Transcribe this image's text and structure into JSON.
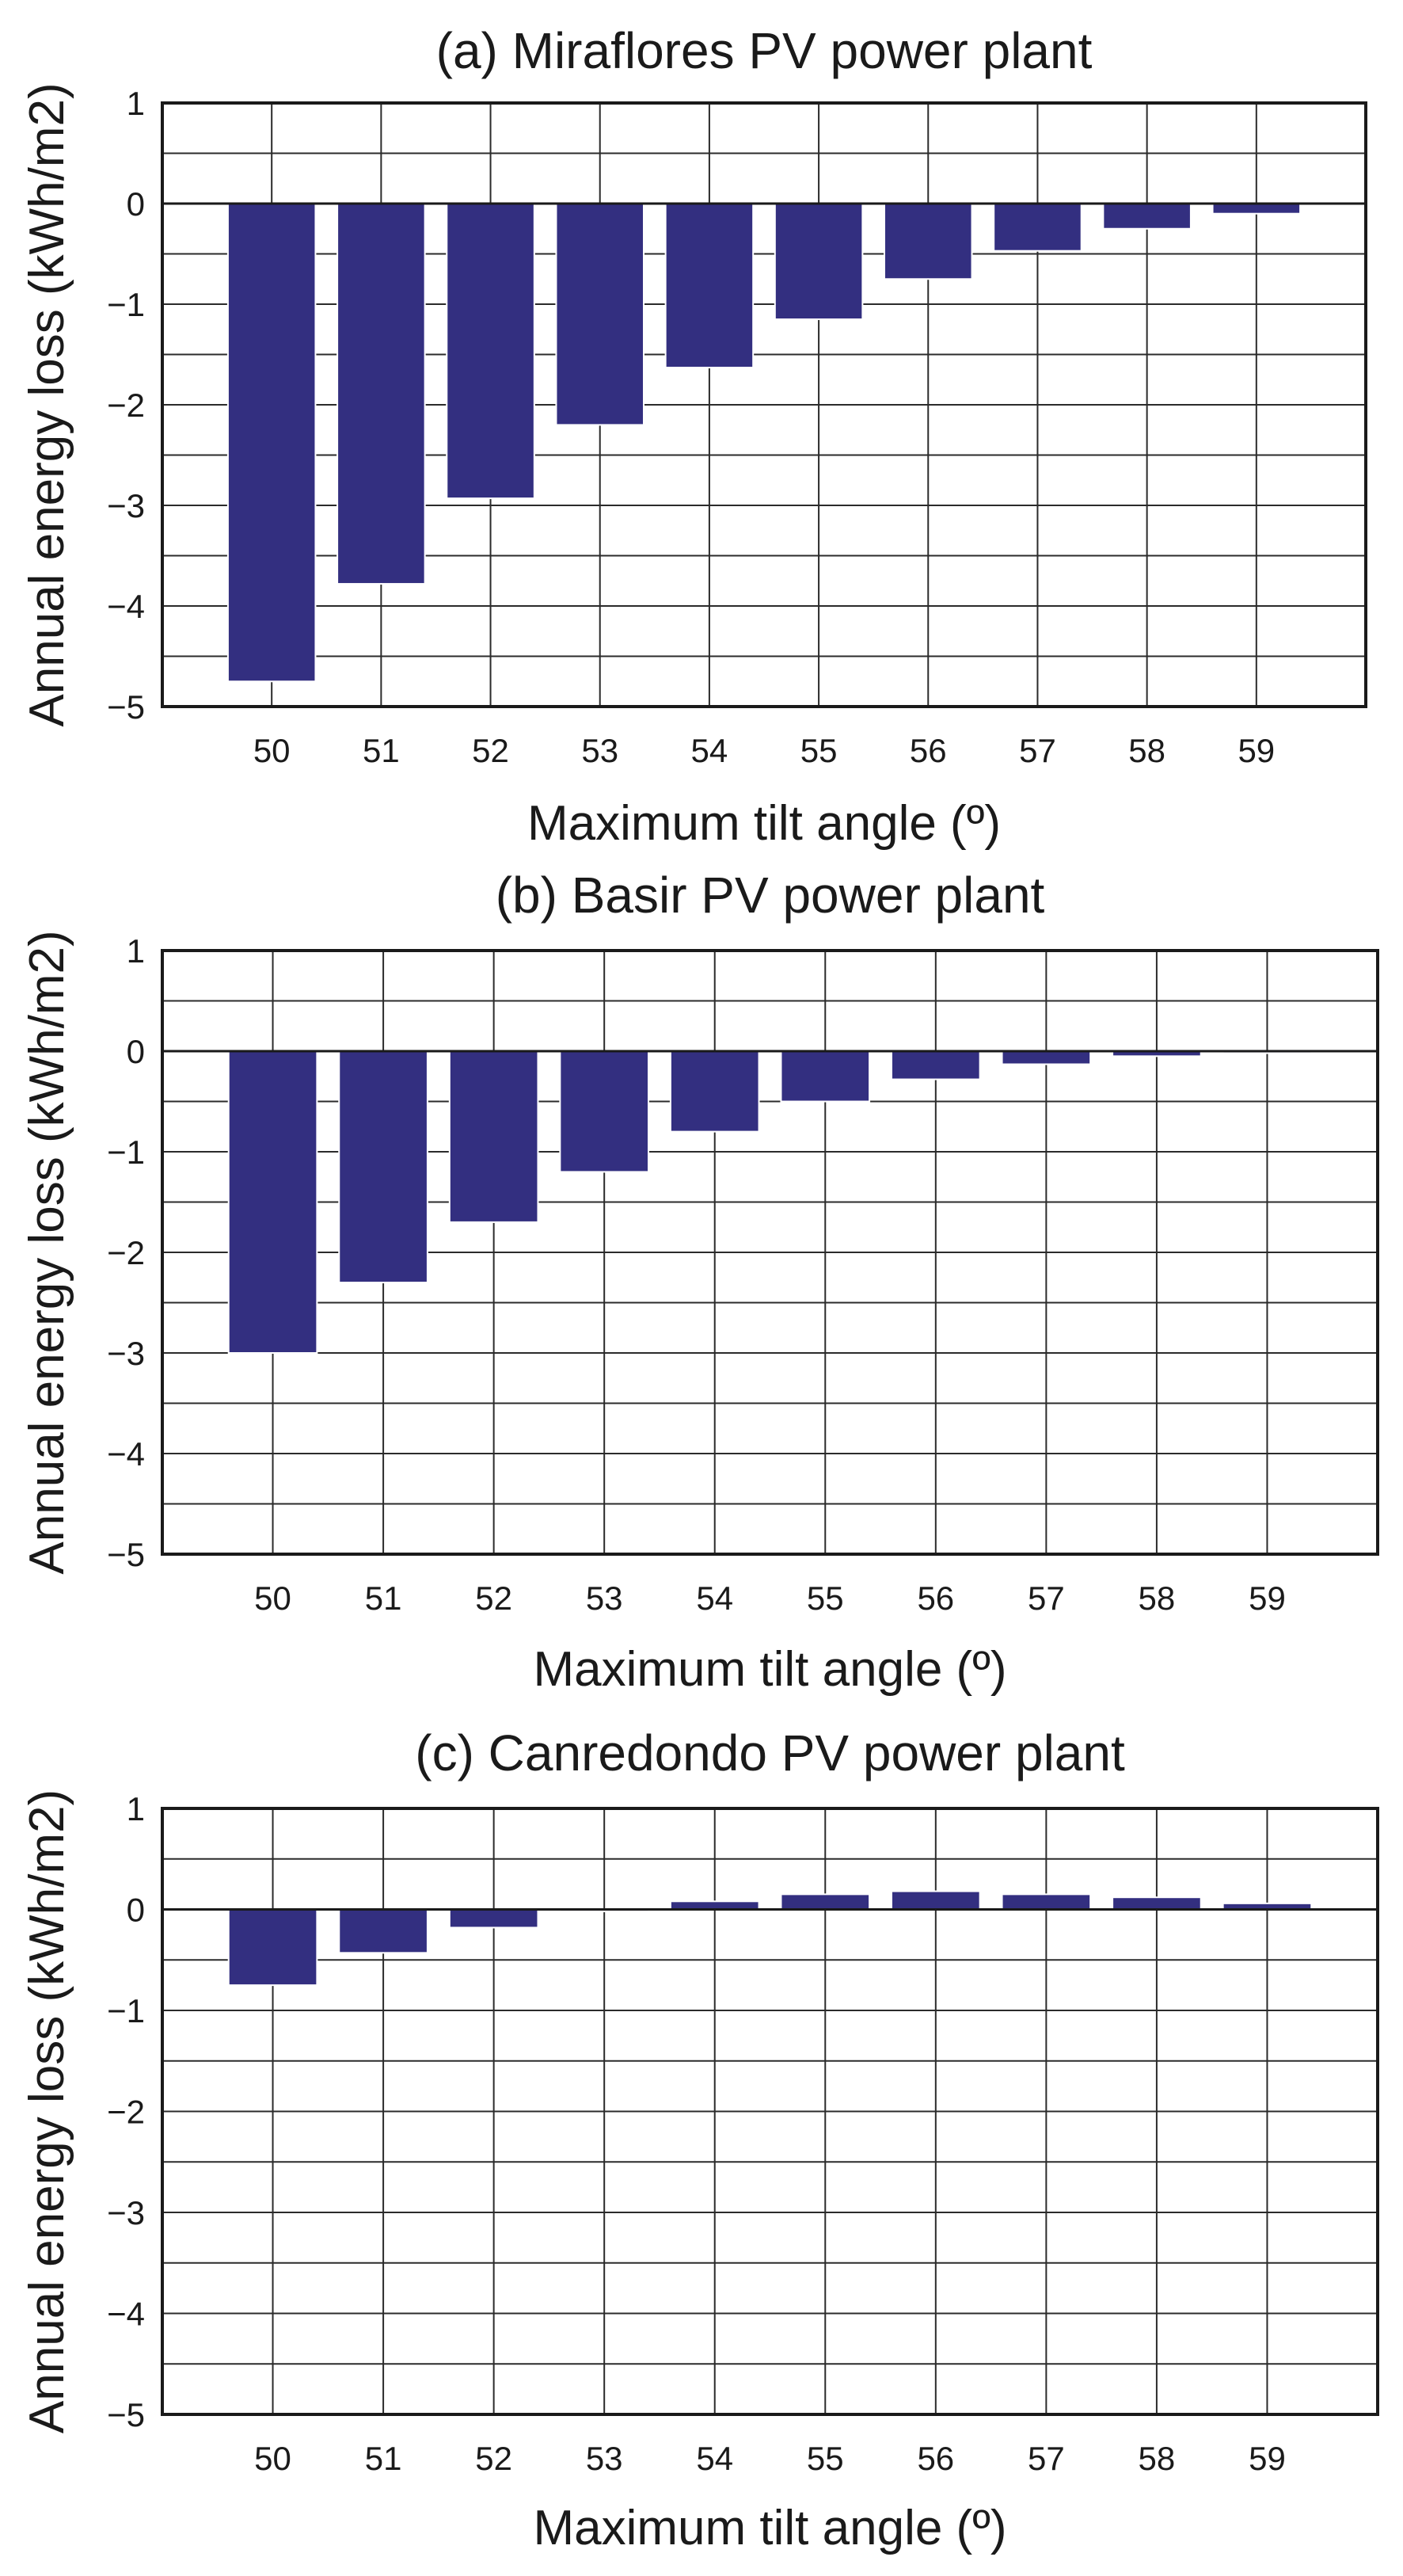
{
  "colors": {
    "bar": "#332f80",
    "grid": "#2b2b2b",
    "axis": "#1a1a1a"
  },
  "chart_data": [
    {
      "type": "bar",
      "title": "(a) Miraflores PV power plant",
      "xlabel": "Maximum tilt angle (º)",
      "ylabel": "Annual energy loss (kWh/m2)",
      "categories": [
        "50",
        "51",
        "52",
        "53",
        "54",
        "55",
        "56",
        "57",
        "58",
        "59"
      ],
      "values": [
        -4.75,
        -3.78,
        -2.93,
        -2.2,
        -1.63,
        -1.15,
        -0.75,
        -0.47,
        -0.25,
        -0.1
      ],
      "ylim": [
        -5,
        1
      ],
      "yticks": [
        "1",
        "0",
        "−1",
        "−2",
        "−3",
        "−4",
        "−5"
      ],
      "grid": true
    },
    {
      "type": "bar",
      "title": "(b) Basir PV power plant",
      "xlabel": "Maximum tilt angle (º)",
      "ylabel": "Annual energy loss (kWh/m2)",
      "categories": [
        "50",
        "51",
        "52",
        "53",
        "54",
        "55",
        "56",
        "57",
        "58",
        "59"
      ],
      "values": [
        -3.0,
        -2.3,
        -1.7,
        -1.2,
        -0.8,
        -0.5,
        -0.28,
        -0.13,
        -0.05,
        -0.02
      ],
      "ylim": [
        -5,
        1
      ],
      "yticks": [
        "1",
        "0",
        "−1",
        "−2",
        "−3",
        "−4",
        "−5"
      ],
      "grid": true
    },
    {
      "type": "bar",
      "title": "(c) Canredondo PV power plant",
      "xlabel": "Maximum tilt angle (º)",
      "ylabel": "Annual energy loss (kWh/m2)",
      "categories": [
        "50",
        "51",
        "52",
        "53",
        "54",
        "55",
        "56",
        "57",
        "58",
        "59"
      ],
      "values": [
        -0.75,
        -0.43,
        -0.18,
        -0.02,
        0.08,
        0.15,
        0.18,
        0.15,
        0.12,
        0.06
      ],
      "ylim": [
        -5,
        1
      ],
      "yticks": [
        "1",
        "0",
        "−1",
        "−2",
        "−3",
        "−4",
        "−5"
      ],
      "grid": true
    }
  ]
}
